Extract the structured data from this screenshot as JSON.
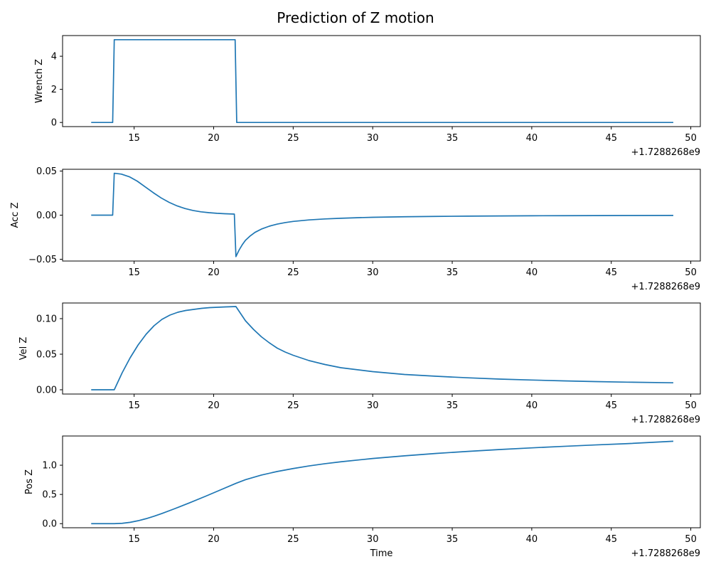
{
  "figure": {
    "title": "Prediction of Z motion"
  },
  "chart_data": [
    {
      "type": "line",
      "ylabel": "Wrench Z",
      "xlabel": "",
      "x_offset_label": "+1.7288268e9",
      "xlim": [
        10.5,
        50.6
      ],
      "ylim": [
        -0.25,
        5.25
      ],
      "xticks": [
        15,
        20,
        25,
        30,
        35,
        40,
        45,
        50
      ],
      "yticks": [
        0,
        2,
        4
      ],
      "ytick_labels": [
        "0",
        "2",
        "4"
      ],
      "grid": false,
      "color": "#1f77b4",
      "series": [
        {
          "x": [
            12.3,
            13.65,
            13.75,
            21.35,
            21.45,
            48.9
          ],
          "y": [
            0,
            0,
            5,
            5,
            0,
            0
          ]
        }
      ]
    },
    {
      "type": "line",
      "ylabel": "Acc Z",
      "xlabel": "",
      "x_offset_label": "+1.7288268e9",
      "xlim": [
        10.5,
        50.6
      ],
      "ylim": [
        -0.052,
        0.052
      ],
      "xticks": [
        15,
        20,
        25,
        30,
        35,
        40,
        45,
        50
      ],
      "yticks": [
        -0.05,
        0,
        0.05
      ],
      "ytick_labels": [
        "−0.05",
        "0.00",
        "0.05"
      ],
      "grid": false,
      "color": "#1f77b4",
      "series": [
        {
          "x": [
            12.3,
            13.65,
            13.75,
            14.2,
            14.7,
            15.2,
            15.7,
            16.2,
            16.7,
            17.2,
            17.7,
            18.2,
            18.7,
            19.2,
            19.7,
            20.2,
            20.7,
            21.3,
            21.4,
            21.6,
            21.8,
            22.0,
            22.3,
            22.6,
            23.0,
            23.5,
            24.0,
            24.5,
            25.0,
            26.0,
            27.0,
            28.0,
            29.0,
            30.0,
            32.0,
            34.0,
            36.0,
            38.0,
            40.0,
            42.0,
            44.0,
            46.0,
            48.9
          ],
          "y": [
            0,
            0,
            0.0475,
            0.0465,
            0.0435,
            0.0385,
            0.032,
            0.0255,
            0.0195,
            0.0145,
            0.0105,
            0.0075,
            0.0053,
            0.0038,
            0.0028,
            0.0021,
            0.0016,
            0.0012,
            -0.047,
            -0.0395,
            -0.0335,
            -0.0285,
            -0.0235,
            -0.0195,
            -0.0158,
            -0.0125,
            -0.0101,
            -0.0084,
            -0.0071,
            -0.0054,
            -0.0043,
            -0.0035,
            -0.0029,
            -0.0024,
            -0.0018,
            -0.0014,
            -0.0011,
            -0.0009,
            -0.0007,
            -0.0006,
            -0.0005,
            -0.0004,
            -0.0003
          ]
        }
      ]
    },
    {
      "type": "line",
      "ylabel": "Vel Z",
      "xlabel": "",
      "x_offset_label": "+1.7288268e9",
      "xlim": [
        10.5,
        50.6
      ],
      "ylim": [
        -0.006,
        0.122
      ],
      "xticks": [
        15,
        20,
        25,
        30,
        35,
        40,
        45,
        50
      ],
      "yticks": [
        0,
        0.05,
        0.1
      ],
      "ytick_labels": [
        "0.00",
        "0.05",
        "0.10"
      ],
      "grid": false,
      "color": "#1f77b4",
      "series": [
        {
          "x": [
            12.3,
            13.75,
            14.25,
            14.75,
            15.25,
            15.75,
            16.25,
            16.75,
            17.25,
            17.75,
            18.25,
            18.75,
            19.25,
            19.75,
            20.25,
            20.75,
            21.4,
            21.7,
            22.0,
            22.5,
            23.0,
            23.5,
            24.0,
            24.5,
            25.0,
            26.0,
            27.0,
            28.0,
            30.0,
            32.0,
            34.0,
            36.0,
            38.0,
            40.0,
            42.0,
            44.0,
            46.0,
            48.9
          ],
          "y": [
            0,
            0,
            0.024,
            0.045,
            0.063,
            0.078,
            0.09,
            0.099,
            0.105,
            0.109,
            0.1115,
            0.113,
            0.1145,
            0.1155,
            0.116,
            0.1165,
            0.117,
            0.107,
            0.097,
            0.085,
            0.0745,
            0.066,
            0.0585,
            0.053,
            0.0485,
            0.041,
            0.0355,
            0.031,
            0.0255,
            0.0215,
            0.019,
            0.0168,
            0.015,
            0.0137,
            0.0125,
            0.0115,
            0.0107,
            0.0098
          ]
        }
      ]
    },
    {
      "type": "line",
      "ylabel": "Pos Z",
      "xlabel": "Time",
      "x_offset_label": "+1.7288268e9",
      "xlim": [
        10.5,
        50.6
      ],
      "ylim": [
        -0.07,
        1.5
      ],
      "xticks": [
        15,
        20,
        25,
        30,
        35,
        40,
        45,
        50
      ],
      "yticks": [
        0,
        0.5,
        1
      ],
      "ytick_labels": [
        "0.0",
        "0.5",
        "1.0"
      ],
      "grid": false,
      "color": "#1f77b4",
      "series": [
        {
          "x": [
            12.3,
            13.75,
            14.25,
            14.75,
            15.25,
            15.75,
            16.25,
            16.75,
            17.5,
            18.5,
            19.5,
            20.5,
            21.4,
            22.0,
            23.0,
            24.0,
            25.0,
            26.0,
            27.0,
            28.0,
            30.0,
            32.0,
            34.0,
            36.0,
            38.0,
            40.0,
            42.0,
            44.0,
            46.0,
            48.9
          ],
          "y": [
            0,
            0,
            0.006,
            0.023,
            0.05,
            0.085,
            0.127,
            0.174,
            0.251,
            0.358,
            0.47,
            0.586,
            0.69,
            0.752,
            0.831,
            0.893,
            0.943,
            0.988,
            1.026,
            1.059,
            1.115,
            1.161,
            1.202,
            1.237,
            1.269,
            1.297,
            1.323,
            1.347,
            1.369,
            1.41
          ]
        }
      ]
    }
  ]
}
